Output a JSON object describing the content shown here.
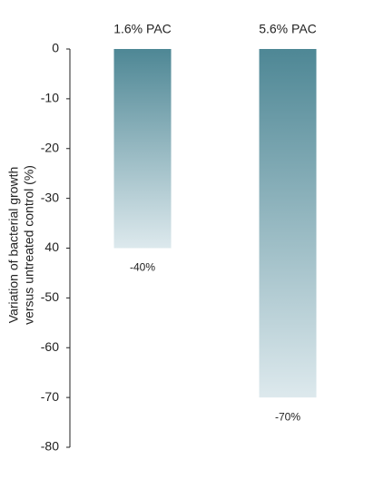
{
  "chart_data": {
    "type": "bar",
    "ylabel": [
      "Variation of bacterial growth",
      "versus untreated control (%)"
    ],
    "categories": [
      "1.6% PAC",
      "5.6% PAC"
    ],
    "values": [
      -40,
      -70
    ],
    "value_labels": [
      "-40%",
      "-70%"
    ],
    "color": "#4e8795",
    "ylim": [
      -80,
      0
    ],
    "yticks": [
      0,
      -10,
      -20,
      -30,
      {
        "value": -40,
        "label": "40"
      },
      -50,
      -60,
      -70,
      -80
    ]
  }
}
